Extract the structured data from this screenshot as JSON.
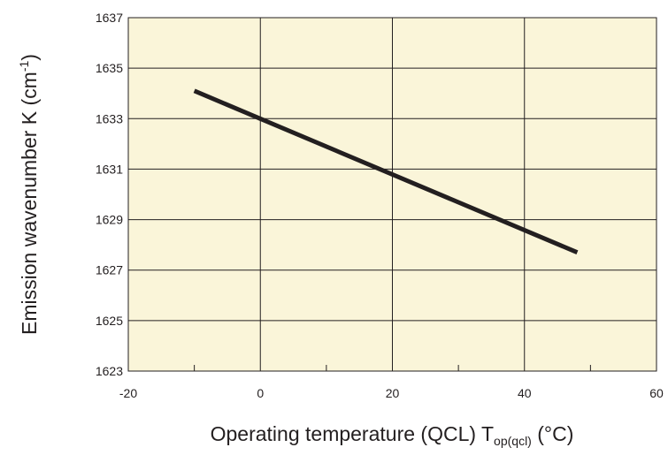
{
  "chart_data": {
    "type": "line",
    "xlabel": {
      "prefix": "Operating temperature (QCL) T",
      "subscript": "op(qcl)",
      "suffix": " (°C)"
    },
    "ylabel": {
      "prefix": "Emission wavenumber K (cm",
      "superscript": "-1",
      "suffix": ")"
    },
    "xlim": [
      -20,
      60
    ],
    "ylim": [
      1623,
      1637
    ],
    "x_ticks": [
      -20,
      0,
      20,
      40,
      60
    ],
    "y_ticks": [
      1623,
      1625,
      1627,
      1629,
      1631,
      1633,
      1635,
      1637
    ],
    "x_minor_ticks": [
      -10,
      10,
      30,
      50
    ],
    "grid": true,
    "series": [
      {
        "x": [
          -10,
          48
        ],
        "y": [
          1634.1,
          1627.7
        ],
        "color": "#231f20"
      }
    ],
    "colors": {
      "plot_background": "#faf5d9",
      "grid": "#231f20",
      "line": "#231f20"
    }
  }
}
